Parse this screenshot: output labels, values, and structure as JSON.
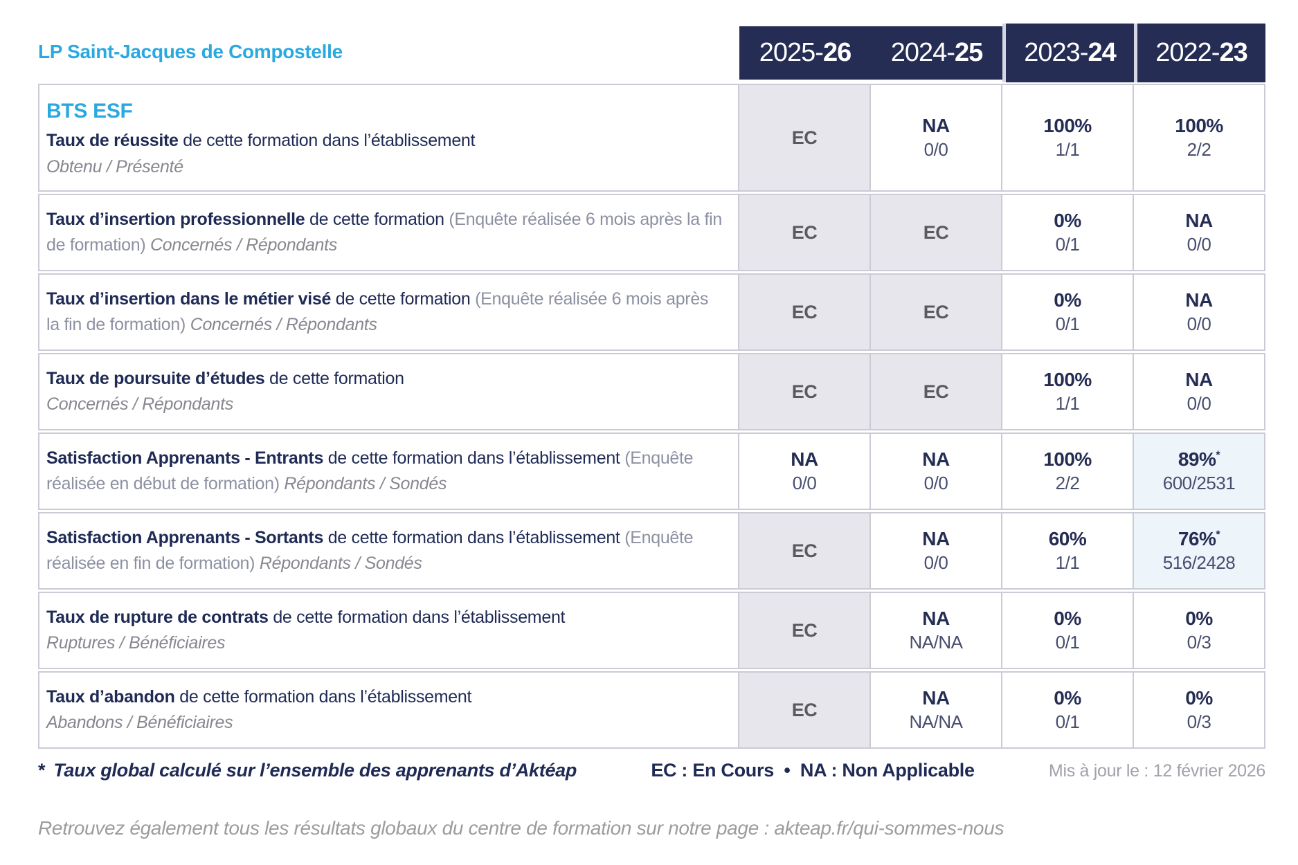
{
  "colors": {
    "navy": "#262D55",
    "cyan_accent": "#2AA9E0",
    "ec_cell_bg": "#E7E6EC",
    "highlight_cell_bg": "#EDF4FA",
    "border": "#CBCBD6"
  },
  "header": {
    "school": "LP Saint-Jacques de Compostelle",
    "years": [
      {
        "prefix": "2025-",
        "bold": "26"
      },
      {
        "prefix": "2024-",
        "bold": "25"
      },
      {
        "prefix": "2023-",
        "bold": "24"
      },
      {
        "prefix": "2022-",
        "bold": "23"
      }
    ]
  },
  "rows": [
    {
      "program": "BTS ESF",
      "label_bold": "Taux de réussite",
      "label_rest": "de cette formation dans l’établissement",
      "label_paren": "",
      "sub_inline": "",
      "sub_block": "Obtenu / Présenté",
      "cells": [
        {
          "type": "ec",
          "value": "EC"
        },
        {
          "type": "value",
          "value": "NA",
          "fraction": "0/0"
        },
        {
          "type": "value",
          "value": "100%",
          "fraction": "1/1"
        },
        {
          "type": "value",
          "value": "100%",
          "fraction": "2/2"
        }
      ]
    },
    {
      "label_bold": "Taux d’insertion professionnelle",
      "label_rest": "de cette formation",
      "label_paren": "(Enquête réalisée 6 mois après la fin de formation)",
      "sub_inline": "Concernés / Répondants",
      "sub_block": "",
      "cells": [
        {
          "type": "ec",
          "value": "EC"
        },
        {
          "type": "ec",
          "value": "EC"
        },
        {
          "type": "value",
          "value": "0%",
          "fraction": "0/1"
        },
        {
          "type": "value",
          "value": "NA",
          "fraction": "0/0"
        }
      ]
    },
    {
      "label_bold": "Taux d’insertion dans le métier visé",
      "label_rest": "de cette formation",
      "label_paren": "(Enquête réalisée 6 mois après la fin de formation)",
      "sub_inline": "Concernés / Répondants",
      "sub_block": "",
      "cells": [
        {
          "type": "ec",
          "value": "EC"
        },
        {
          "type": "ec",
          "value": "EC"
        },
        {
          "type": "value",
          "value": "0%",
          "fraction": "0/1"
        },
        {
          "type": "value",
          "value": "NA",
          "fraction": "0/0"
        }
      ]
    },
    {
      "label_bold": "Taux de poursuite d’études",
      "label_rest": "de cette formation",
      "label_paren": "",
      "sub_inline": "",
      "sub_block": "Concernés / Répondants",
      "cells": [
        {
          "type": "ec",
          "value": "EC"
        },
        {
          "type": "ec",
          "value": "EC"
        },
        {
          "type": "value",
          "value": "100%",
          "fraction": "1/1"
        },
        {
          "type": "value",
          "value": "NA",
          "fraction": "0/0"
        }
      ]
    },
    {
      "label_bold": "Satisfaction Apprenants - Entrants",
      "label_rest": "de cette formation dans l’établissement",
      "label_paren": "(Enquête réalisée en début de formation)",
      "sub_inline": "Répondants / Sondés",
      "sub_block": "",
      "cells": [
        {
          "type": "value",
          "value": "NA",
          "fraction": "0/0"
        },
        {
          "type": "value",
          "value": "NA",
          "fraction": "0/0"
        },
        {
          "type": "value",
          "value": "100%",
          "fraction": "2/2"
        },
        {
          "type": "value",
          "value": "89%",
          "asterisk": "*",
          "fraction": "600/2531",
          "highlight": true
        }
      ]
    },
    {
      "label_bold": "Satisfaction Apprenants - Sortants",
      "label_rest": "de cette formation dans l’établissement",
      "label_paren": "(Enquête réalisée en fin de formation)",
      "sub_inline": "Répondants / Sondés",
      "sub_block": "",
      "cells": [
        {
          "type": "ec",
          "value": "EC"
        },
        {
          "type": "value",
          "value": "NA",
          "fraction": "0/0"
        },
        {
          "type": "value",
          "value": "60%",
          "fraction": "1/1"
        },
        {
          "type": "value",
          "value": "76%",
          "asterisk": "*",
          "fraction": "516/2428",
          "highlight": true
        }
      ]
    },
    {
      "label_bold": "Taux de rupture de contrats",
      "label_rest": "de cette formation dans l’établissement",
      "label_paren": "",
      "sub_inline": "",
      "sub_block": "Ruptures / Bénéficiaires",
      "cells": [
        {
          "type": "ec",
          "value": "EC"
        },
        {
          "type": "value",
          "value": "NA",
          "fraction": "NA/NA"
        },
        {
          "type": "value",
          "value": "0%",
          "fraction": "0/1"
        },
        {
          "type": "value",
          "value": "0%",
          "fraction": "0/3"
        }
      ]
    },
    {
      "label_bold": "Taux d’abandon",
      "label_rest": "de cette formation dans l’établissement",
      "label_paren": "",
      "sub_inline": "",
      "sub_block": "Abandons / Bénéficiaires",
      "cells": [
        {
          "type": "ec",
          "value": "EC"
        },
        {
          "type": "value",
          "value": "NA",
          "fraction": "NA/NA"
        },
        {
          "type": "value",
          "value": "0%",
          "fraction": "0/1"
        },
        {
          "type": "value",
          "value": "0%",
          "fraction": "0/3"
        }
      ]
    }
  ],
  "footer": {
    "note_star": "*",
    "note": "Taux global calculé sur l’ensemble des apprenants d’Aktéap",
    "legend": "EC : En Cours  •  NA : Non Applicable",
    "updated": "Mis à jour le : 12 février 2026",
    "bottom": "Retrouvez également tous les résultats globaux du centre de formation sur notre page : akteap.fr/qui-sommes-nous"
  }
}
